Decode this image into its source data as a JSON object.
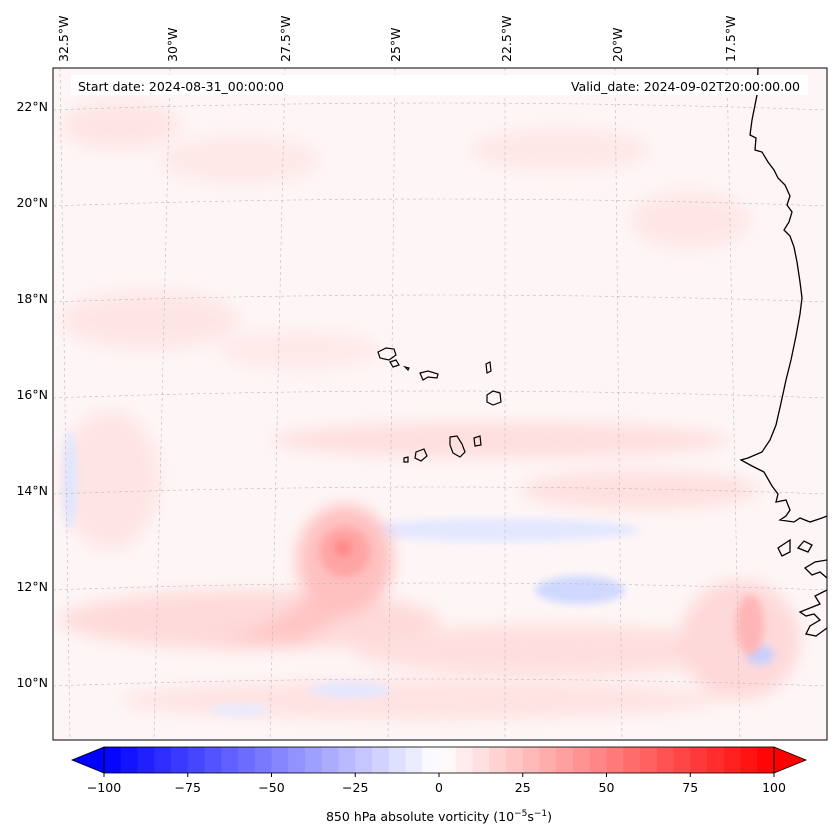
{
  "header": {
    "start_date": "Start date: 2024-08-31_00:00:00",
    "valid_date": "Valid_date: 2024-09-02T20:00:00.00"
  },
  "axes": {
    "lon_labels": [
      "32.5°W",
      "30°W",
      "27.5°W",
      "25°W",
      "22.5°W",
      "20°W",
      "17.5°W"
    ],
    "lat_labels": [
      "22°N",
      "20°N",
      "18°N",
      "16°N",
      "14°N",
      "12°N",
      "10°N"
    ]
  },
  "colorbar": {
    "label": "850 hPa absolute vorticity (10",
    "label_exp1": "−5",
    "label_mid": "s",
    "label_exp2": "−1",
    "label_end": ")",
    "ticks": [
      "−100",
      "−75",
      "−50",
      "−25",
      "0",
      "25",
      "50",
      "75",
      "100"
    ],
    "range": [
      -100,
      100
    ],
    "colors": {
      "negative": "#0000ff",
      "zero": "#ffffff",
      "positive": "#ff0000"
    }
  },
  "map_data": {
    "field": "850 hPa absolute vorticity",
    "features": [
      "Cape Verde islands",
      "West African coastline"
    ],
    "max_positive_center_lon_lat": [
      -26.5,
      12.8
    ]
  }
}
